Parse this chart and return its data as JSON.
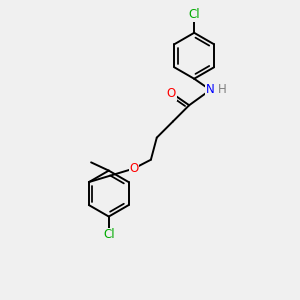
{
  "bg_color": "#f0f0f0",
  "bond_color": "#000000",
  "bond_width": 1.4,
  "atom_colors": {
    "Cl": "#00aa00",
    "O": "#ff0000",
    "N": "#0000ff",
    "C": "#000000",
    "H": "#808080"
  },
  "font_size": 8.5,
  "fig_size": [
    3.0,
    3.0
  ],
  "dpi": 100,
  "xlim": [
    0,
    10
  ],
  "ylim": [
    0,
    10
  ]
}
